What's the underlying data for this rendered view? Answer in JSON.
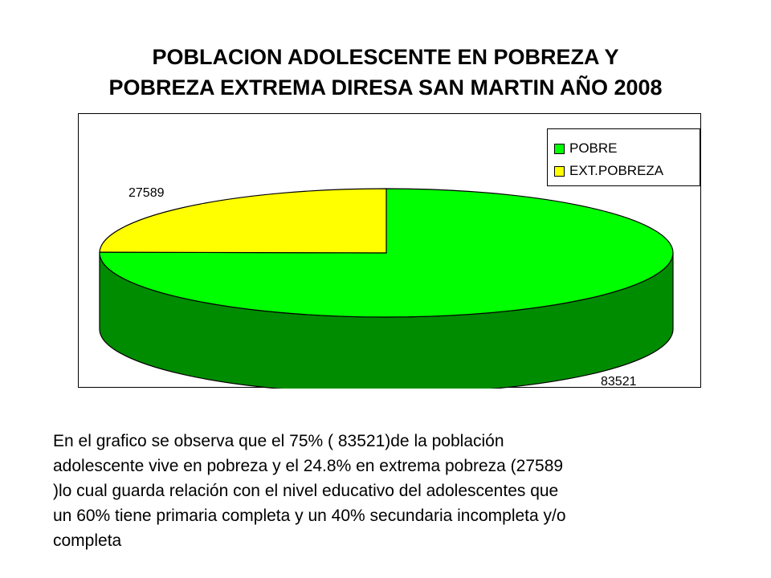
{
  "title_line1": "POBLACION ADOLESCENTE EN POBREZA Y",
  "title_line2": "POBREZA EXTREMA DIRESA SAN MARTIN AÑO 2008",
  "chart_data": {
    "type": "pie",
    "style": "3d",
    "categories": [
      "POBRE",
      "EXT.POBREZA"
    ],
    "values": [
      83521,
      27589
    ],
    "data_labels": [
      "83521",
      "27589"
    ],
    "colors": [
      "#00FF00",
      "#FFFF00"
    ],
    "legend_position": "top-right"
  },
  "caption_lines": [
    "En el grafico se observa que el 75% ( 83521)de la población",
    "adolescente vive en pobreza y el 24.8% en extrema pobreza (27589",
    ")lo cual guarda relación con el nivel educativo del adolescentes que",
    "un 60% tiene primaria completa y un 40% secundaria incompleta y/o",
    "completa"
  ]
}
